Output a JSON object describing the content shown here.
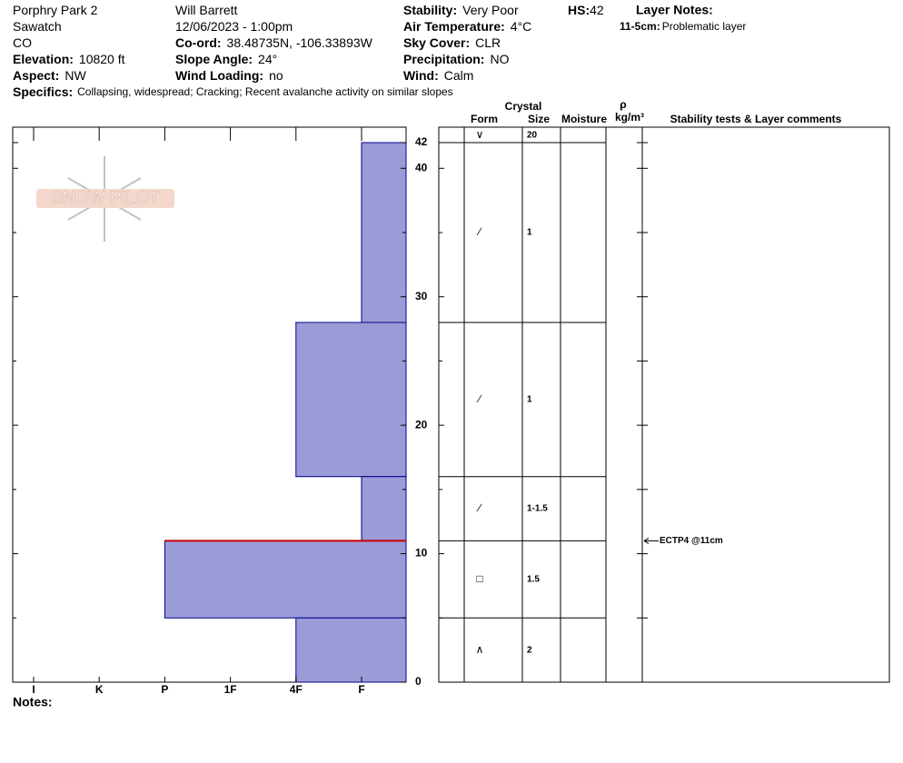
{
  "header": {
    "columns": [
      [
        {
          "value": "Porphry Park 2"
        },
        {
          "value": "Sawatch"
        },
        {
          "value": "CO"
        },
        {
          "label": "Elevation:",
          "value": "10820 ft"
        },
        {
          "label": "Aspect:",
          "value": "NW"
        }
      ],
      [
        {
          "value": "Will  Barrett"
        },
        {
          "value": "12/06/2023 - 1:00pm"
        },
        {
          "label": "Co-ord:",
          "value": "38.48735N, -106.33893W"
        },
        {
          "label": "Slope Angle:",
          "value": "24°"
        },
        {
          "label": "Wind Loading:",
          "value": "no"
        }
      ],
      [
        {
          "label": "Stability:",
          "value": "Very Poor"
        },
        {
          "label": "Air Temperature:",
          "value": "4°C"
        },
        {
          "label": "Sky Cover:",
          "value": "CLR"
        },
        {
          "label": "Precipitation:",
          "value": "NO"
        },
        {
          "label": "Wind:",
          "value": "Calm"
        }
      ]
    ],
    "hs": {
      "label": "HS:",
      "value": 42
    },
    "layer_notes": {
      "title": "Layer Notes:",
      "range": "11-5cm:",
      "text": "Problematic layer"
    },
    "specifics": {
      "label": "Specifics:",
      "value": "Collapsing, widespread;  Cracking;  Recent avalanche activity on similar slopes"
    },
    "logo": "SNOW PILOT"
  },
  "chart_data": {
    "type": "hardness-profile",
    "categories": [
      "I",
      "K",
      "P",
      "1F",
      "4F",
      "F"
    ],
    "ylim": [
      0,
      42
    ],
    "yticks": [
      0,
      10,
      20,
      30,
      40,
      42
    ],
    "yminor": [
      5,
      15,
      25,
      35
    ],
    "color": "#9b9bd7",
    "edge_color": "#00008b",
    "highlight": {
      "depth": 11,
      "color": "#cc0000"
    },
    "layers": [
      {
        "top": 42,
        "bottom": 28,
        "hardness": "F",
        "form": "∕",
        "size": 1
      },
      {
        "top": 28,
        "bottom": 16,
        "hardness": "4F",
        "form": "∕",
        "size": 1
      },
      {
        "top": 16,
        "bottom": 11,
        "hardness": "F",
        "form": "∕",
        "size": "1-1.5"
      },
      {
        "top": 11,
        "bottom": 5,
        "hardness": "P",
        "form": "□",
        "size": 1.5
      },
      {
        "top": 5,
        "bottom": 0,
        "hardness": "4F",
        "form": "∧",
        "size": 2
      }
    ],
    "surface": {
      "form": "∨",
      "size": 20
    },
    "tests": [
      {
        "label": "ECTP4 @11cm",
        "depth": 11
      }
    ]
  },
  "table_headers": {
    "crystal": "Crystal",
    "form": "Form",
    "size": "Size",
    "moisture": "Moisture",
    "rho": "ρ",
    "density_unit": "kg/m³",
    "comments": "Stability tests & Layer comments"
  },
  "notes_label": "Notes:"
}
